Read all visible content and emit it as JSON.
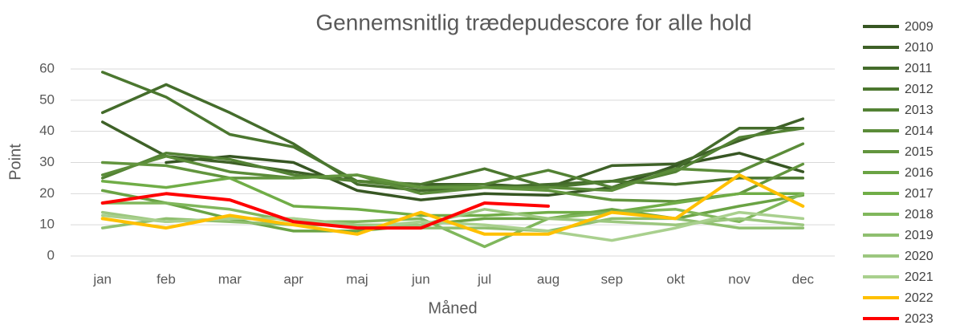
{
  "chart_data": {
    "type": "line",
    "title": "Gennemsnitlig trædepudescore for alle hold",
    "x_label": "Måned",
    "y_label": "Point",
    "categories": [
      "jan",
      "feb",
      "mar",
      "apr",
      "maj",
      "jun",
      "jul",
      "aug",
      "sep",
      "okt",
      "nov",
      "dec"
    ],
    "ylim": [
      0,
      60
    ],
    "yticks": [
      0,
      10,
      20,
      30,
      40,
      50,
      60
    ],
    "grid": true,
    "legend": "right",
    "series": [
      {
        "name": "2009",
        "color": "#375623",
        "values": [
          null,
          30,
          32,
          30,
          21,
          18,
          20,
          19.5,
          22,
          29,
          33,
          27
        ]
      },
      {
        "name": "2010",
        "color": "#3e6127",
        "values": [
          43,
          32,
          30,
          27,
          24,
          23,
          23,
          22,
          29,
          29.5,
          37,
          44
        ]
      },
      {
        "name": "2011",
        "color": "#446c2b",
        "values": [
          46,
          55,
          46,
          36,
          23,
          21,
          22,
          23,
          24,
          28,
          41,
          41
        ]
      },
      {
        "name": "2012",
        "color": "#4b772f",
        "values": [
          59,
          51,
          39,
          35,
          24,
          23,
          28,
          22,
          24,
          23,
          25,
          25
        ]
      },
      {
        "name": "2013",
        "color": "#538234",
        "values": [
          25,
          33,
          31,
          26,
          24,
          22,
          23,
          27.5,
          22,
          27,
          38,
          41
        ]
      },
      {
        "name": "2014",
        "color": "#5b8c39",
        "values": [
          26,
          32,
          27,
          25,
          26,
          20,
          22,
          22,
          21,
          28,
          27,
          36
        ]
      },
      {
        "name": "2015",
        "color": "#62953e",
        "values": [
          30,
          29,
          25,
          25,
          26,
          22,
          22,
          21,
          18,
          17.5,
          20,
          29.5
        ]
      },
      {
        "name": "2016",
        "color": "#6aa344",
        "values": [
          21,
          17,
          12,
          8,
          8,
          10,
          12,
          12,
          15,
          12,
          16,
          19.5
        ]
      },
      {
        "name": "2017",
        "color": "#70ad47",
        "values": [
          24,
          22,
          25,
          16,
          15,
          13,
          13,
          14,
          14,
          17,
          20,
          20
        ]
      },
      {
        "name": "2018",
        "color": "#80b75c",
        "values": [
          17,
          17,
          15,
          11,
          11,
          12,
          3,
          12,
          14,
          15,
          11,
          20
        ]
      },
      {
        "name": "2019",
        "color": "#8fbf6f",
        "values": [
          9,
          12,
          11,
          10,
          10,
          9,
          9,
          8,
          12,
          12,
          9,
          9
        ]
      },
      {
        "name": "2020",
        "color": "#9cc77f",
        "values": [
          14,
          11,
          12,
          12,
          10,
          10,
          15,
          12,
          11,
          10,
          12,
          10
        ]
      },
      {
        "name": "2021",
        "color": "#a9d08e",
        "values": [
          13,
          11,
          12,
          12,
          9,
          11,
          10,
          8,
          5,
          9,
          14,
          12
        ]
      },
      {
        "name": "2022",
        "color": "#ffc000",
        "values": [
          12,
          9,
          13,
          10,
          7,
          14,
          7,
          7,
          14,
          12,
          26,
          16
        ]
      },
      {
        "name": "2023",
        "color": "#ff0000",
        "values": [
          17,
          20,
          18,
          11,
          9,
          9,
          17,
          16,
          null,
          null,
          null,
          null
        ]
      }
    ]
  }
}
